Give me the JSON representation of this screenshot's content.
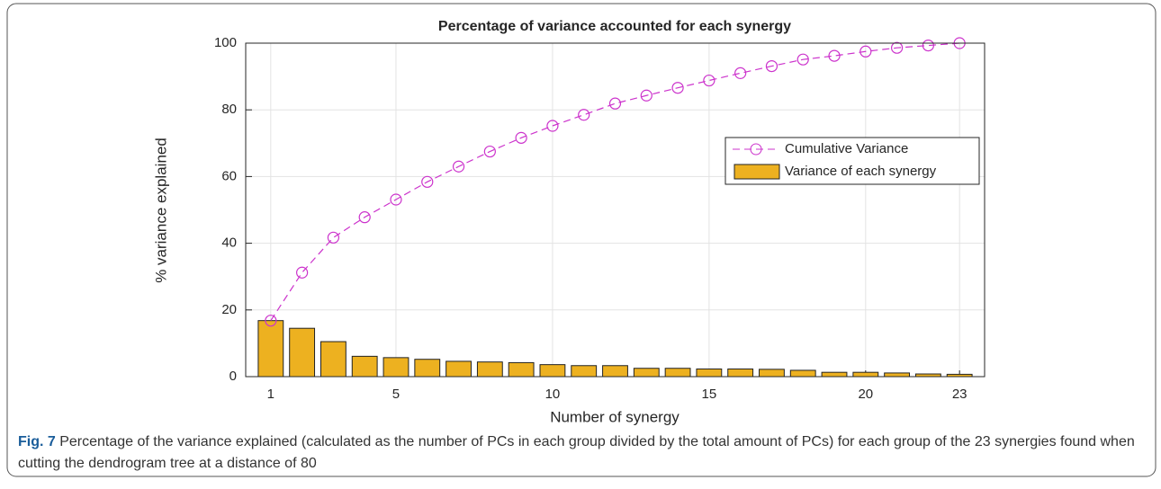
{
  "chart_data": {
    "type": "bar",
    "title": "Percentage of variance accounted for each synergy",
    "xlabel": "Number of synergy",
    "ylabel": "% variance explained",
    "x": [
      1,
      2,
      3,
      4,
      5,
      6,
      7,
      8,
      9,
      10,
      11,
      12,
      13,
      14,
      15,
      16,
      17,
      18,
      19,
      20,
      21,
      22,
      23
    ],
    "series": [
      {
        "name": "Cumulative Variance",
        "type": "line",
        "color": "#cc33cc",
        "values": [
          16.8,
          31.2,
          41.7,
          47.8,
          53.1,
          58.4,
          63.0,
          67.5,
          71.6,
          75.2,
          78.5,
          81.9,
          84.3,
          86.6,
          88.8,
          91.0,
          93.1,
          95.1,
          96.2,
          97.5,
          98.6,
          99.3,
          100
        ]
      },
      {
        "name": "Variance of each synergy",
        "type": "bar",
        "color": "#edb120",
        "values": [
          16.8,
          14.5,
          10.5,
          6.1,
          5.7,
          5.2,
          4.6,
          4.4,
          4.2,
          3.6,
          3.3,
          3.3,
          2.5,
          2.5,
          2.3,
          2.3,
          2.2,
          1.9,
          1.3,
          1.3,
          1.1,
          0.8,
          0.7
        ]
      }
    ],
    "xlim": [
      0.2,
      23.8
    ],
    "xticks": [
      1,
      5,
      10,
      15,
      20,
      23
    ],
    "ylim": [
      0,
      100
    ],
    "yticks": [
      0,
      20,
      40,
      60,
      80,
      100
    ],
    "grid": true,
    "legend": "east"
  },
  "caption": {
    "label": "Fig. 7",
    "text": "Percentage of the variance explained (calculated as the number of PCs in each group divided by the total amount of PCs) for each group of the 23 synergies found when cutting the dendrogram tree at a distance of 80"
  }
}
